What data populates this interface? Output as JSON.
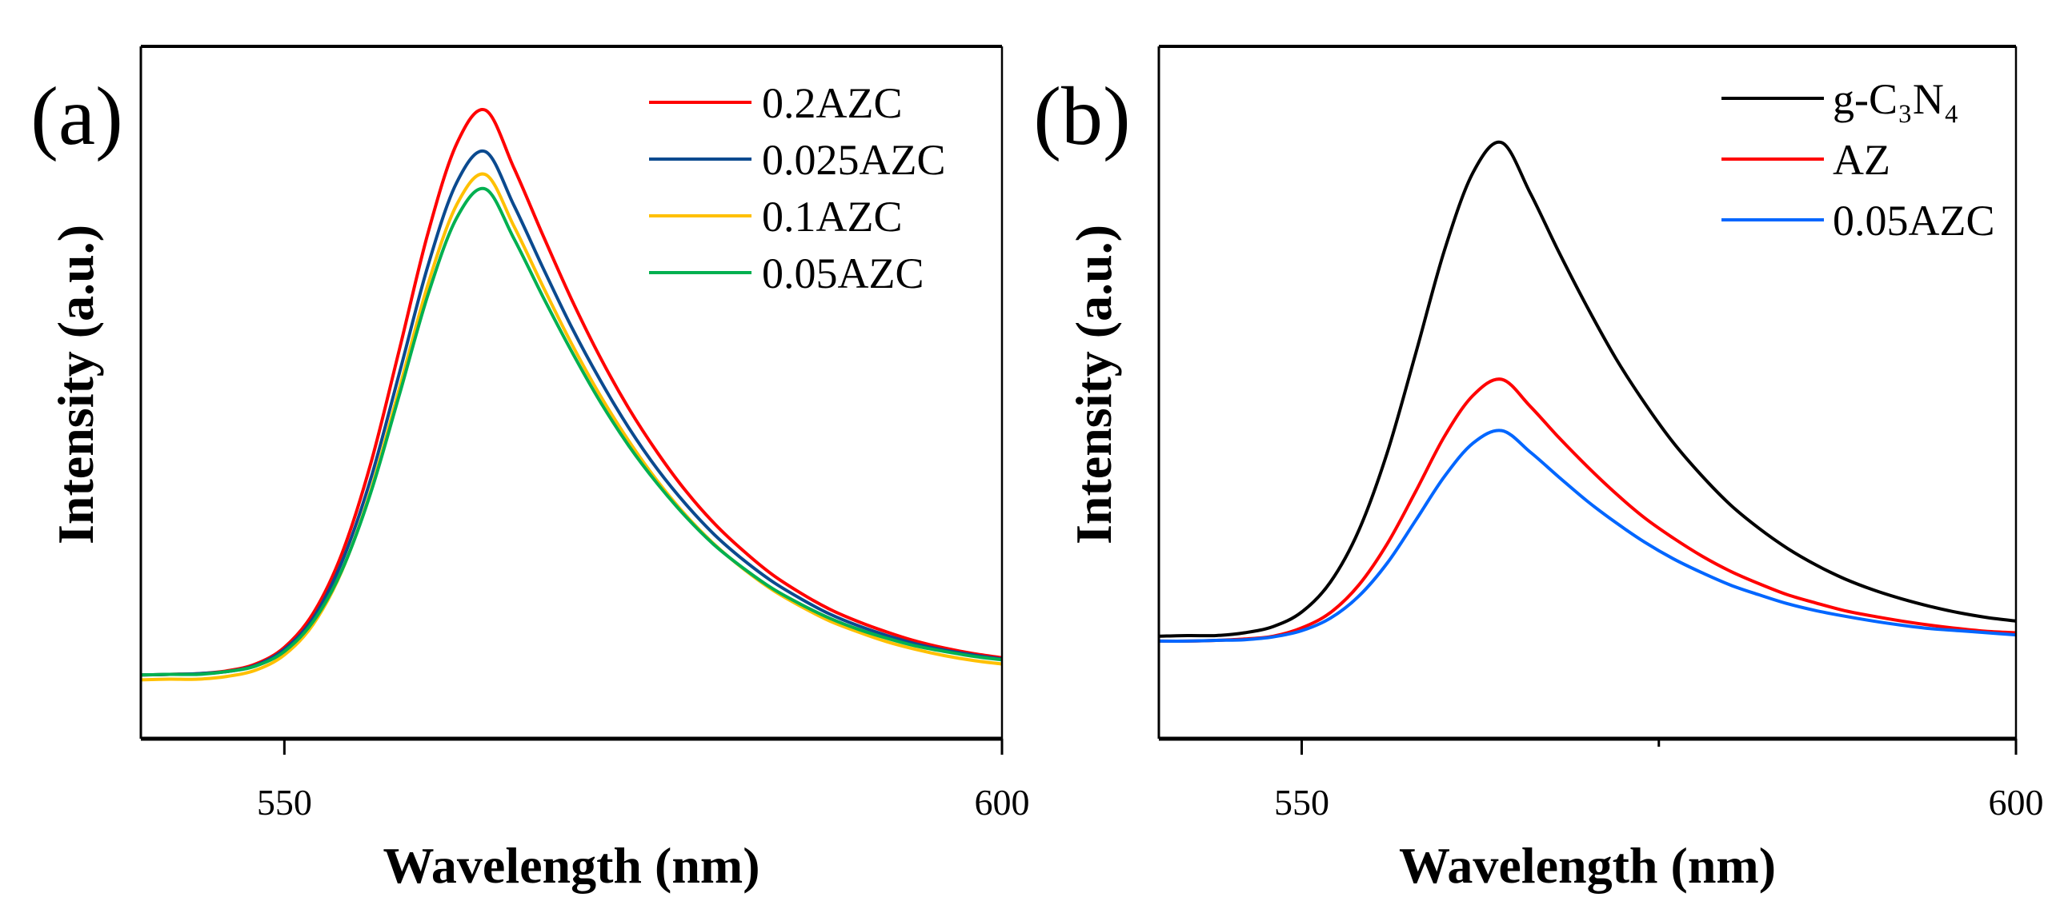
{
  "chart_data": [
    {
      "type": "line",
      "panel_label": "(a)",
      "xlabel": "Wavelength (nm)",
      "ylabel": "Intensity (a.u.)",
      "xlim": [
        540,
        600
      ],
      "ylim": [
        0,
        1
      ],
      "x_ticks": [
        550,
        600
      ],
      "x_minor_ticks": [],
      "y_ticks": [],
      "grid": false,
      "legend_position": "top-right",
      "x": [
        540,
        542,
        544,
        546,
        548,
        550,
        552,
        554,
        556,
        558,
        560,
        562,
        564,
        566,
        568,
        570,
        572,
        574,
        576,
        578,
        580,
        582,
        584,
        586,
        588,
        590,
        592,
        594,
        596,
        598,
        600
      ],
      "series": [
        {
          "name": "0.2AZC",
          "color": "#ff0000",
          "values": [
            0.092,
            0.093,
            0.094,
            0.098,
            0.108,
            0.132,
            0.181,
            0.267,
            0.396,
            0.561,
            0.73,
            0.859,
            0.908,
            0.824,
            0.728,
            0.635,
            0.551,
            0.477,
            0.413,
            0.357,
            0.31,
            0.271,
            0.237,
            0.21,
            0.187,
            0.169,
            0.154,
            0.141,
            0.131,
            0.123,
            0.117
          ]
        },
        {
          "name": "0.025AZC",
          "color": "#0b4a8f",
          "values": [
            0.092,
            0.093,
            0.094,
            0.097,
            0.106,
            0.129,
            0.174,
            0.255,
            0.374,
            0.527,
            0.683,
            0.803,
            0.848,
            0.77,
            0.681,
            0.595,
            0.518,
            0.449,
            0.389,
            0.338,
            0.294,
            0.258,
            0.227,
            0.202,
            0.18,
            0.163,
            0.149,
            0.137,
            0.128,
            0.121,
            0.115
          ]
        },
        {
          "name": "0.1AZC",
          "color": "#ffc000",
          "values": [
            0.085,
            0.086,
            0.086,
            0.09,
            0.099,
            0.121,
            0.165,
            0.242,
            0.357,
            0.505,
            0.656,
            0.771,
            0.815,
            0.74,
            0.654,
            0.571,
            0.496,
            0.43,
            0.372,
            0.322,
            0.28,
            0.245,
            0.215,
            0.191,
            0.17,
            0.154,
            0.14,
            0.129,
            0.12,
            0.113,
            0.108
          ]
        },
        {
          "name": "0.05AZC",
          "color": "#00b050",
          "values": [
            0.092,
            0.093,
            0.093,
            0.097,
            0.105,
            0.126,
            0.169,
            0.243,
            0.354,
            0.496,
            0.641,
            0.752,
            0.794,
            0.722,
            0.639,
            0.56,
            0.487,
            0.423,
            0.368,
            0.32,
            0.279,
            0.246,
            0.217,
            0.194,
            0.174,
            0.158,
            0.145,
            0.134,
            0.126,
            0.119,
            0.114
          ]
        }
      ]
    },
    {
      "type": "line",
      "panel_label": "(b)",
      "xlabel": "Wavelength (nm)",
      "ylabel": "Intensity (a.u.)",
      "xlim": [
        540,
        600
      ],
      "ylim": [
        0,
        1
      ],
      "x_ticks": [
        550,
        600
      ],
      "x_minor_ticks": [
        575
      ],
      "y_ticks": [],
      "grid": false,
      "legend_position": "top-right",
      "x": [
        540,
        542,
        544,
        546,
        548,
        550,
        552,
        554,
        556,
        558,
        560,
        562,
        564,
        566,
        568,
        570,
        572,
        574,
        576,
        578,
        580,
        582,
        584,
        586,
        588,
        590,
        592,
        594,
        596,
        598,
        600
      ],
      "series": [
        {
          "name": "g-C₃N₄",
          "color": "#000000",
          "values": [
            0.148,
            0.149,
            0.149,
            0.153,
            0.162,
            0.183,
            0.226,
            0.301,
            0.414,
            0.558,
            0.706,
            0.818,
            0.861,
            0.788,
            0.703,
            0.623,
            0.549,
            0.485,
            0.428,
            0.38,
            0.338,
            0.304,
            0.275,
            0.251,
            0.231,
            0.215,
            0.202,
            0.191,
            0.182,
            0.175,
            0.17
          ]
        },
        {
          "name": "AZ",
          "color": "#ff0000",
          "values": [
            0.141,
            0.141,
            0.142,
            0.144,
            0.148,
            0.16,
            0.182,
            0.222,
            0.282,
            0.358,
            0.437,
            0.496,
            0.519,
            0.48,
            0.435,
            0.393,
            0.354,
            0.319,
            0.29,
            0.264,
            0.242,
            0.224,
            0.208,
            0.196,
            0.185,
            0.177,
            0.17,
            0.164,
            0.159,
            0.155,
            0.153
          ]
        },
        {
          "name": "0.05AZC",
          "color": "#0066ff",
          "values": [
            0.141,
            0.141,
            0.142,
            0.143,
            0.147,
            0.156,
            0.174,
            0.206,
            0.254,
            0.316,
            0.379,
            0.427,
            0.445,
            0.414,
            0.378,
            0.343,
            0.312,
            0.284,
            0.26,
            0.24,
            0.222,
            0.208,
            0.195,
            0.185,
            0.177,
            0.17,
            0.164,
            0.159,
            0.156,
            0.153,
            0.15
          ]
        }
      ]
    }
  ]
}
